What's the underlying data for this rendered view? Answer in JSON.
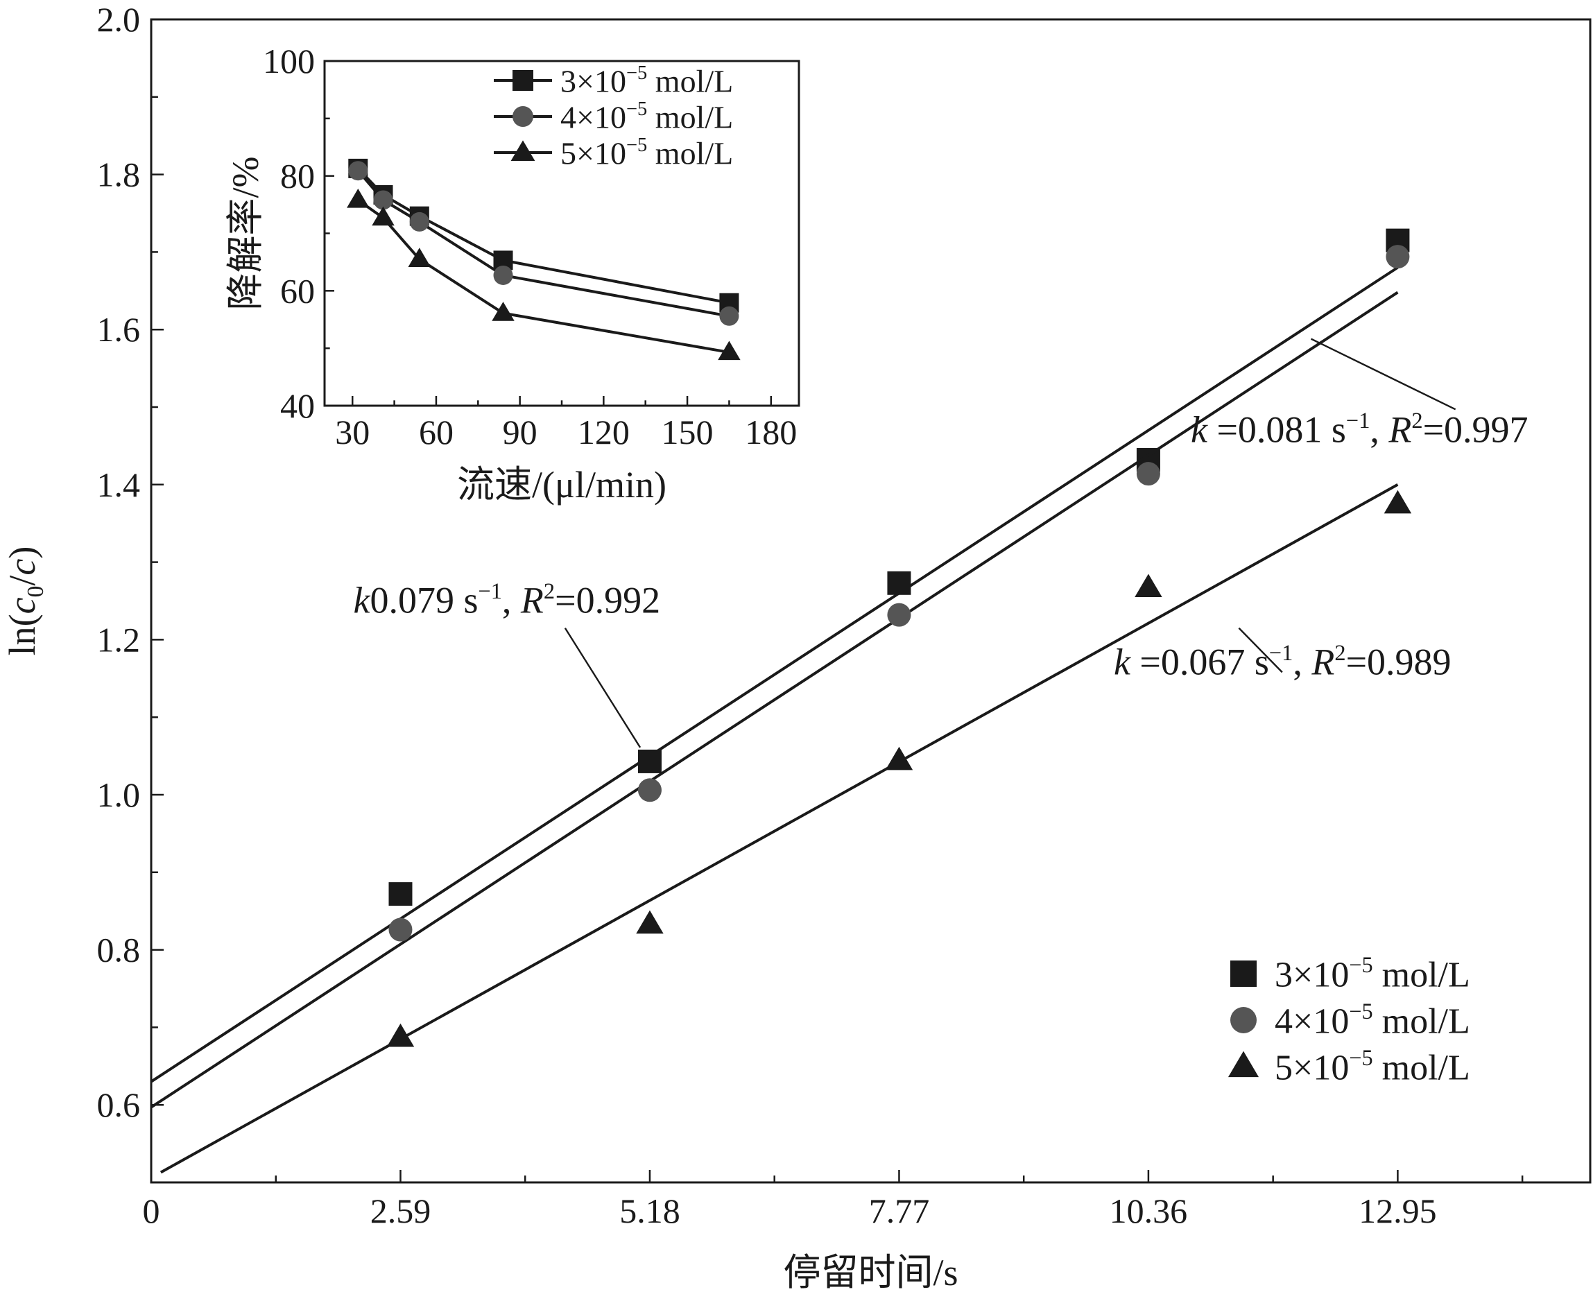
{
  "chart_data": [
    {
      "type": "scatter",
      "xlabel": "停留时间/s",
      "ylabel": "ln(c0/c)",
      "ylabel_parts": {
        "prefix": "ln(",
        "c": "c",
        "sub": "0",
        "slash": "/",
        "c2": "c",
        "suffix": ")"
      },
      "xlim": [
        0,
        14.95
      ],
      "ylim": [
        0.5,
        2.0
      ],
      "x_ticks": [
        0,
        2.59,
        5.18,
        7.77,
        10.36,
        12.95
      ],
      "x_tick_labels": [
        "0",
        "2.59",
        "5.18",
        "7.77",
        "10.36",
        "12.95"
      ],
      "y_ticks": [
        0.6,
        0.8,
        1.0,
        1.2,
        1.4,
        1.6,
        1.8,
        2.0
      ],
      "y_tick_labels": [
        "0.6",
        "0.8",
        "1.0",
        "1.2",
        "1.4",
        "1.6",
        "1.8",
        "2.0"
      ],
      "legend_position": "bottom-right",
      "series": [
        {
          "name": "3×10⁻⁵ mol/L",
          "name_parts": {
            "coef": "3×10",
            "exp": "−5",
            "unit": " mol/L"
          },
          "marker": "square",
          "color": "#1a1a1a",
          "x": [
            2.59,
            5.18,
            7.77,
            10.36,
            12.95
          ],
          "y": [
            0.872,
            1.043,
            1.273,
            1.432,
            1.715
          ],
          "fit": {
            "x": [
              0,
              12.95
            ],
            "y": [
              0.63,
              1.68
            ]
          }
        },
        {
          "name": "4×10⁻⁵ mol/L",
          "name_parts": {
            "coef": "4×10",
            "exp": "−5",
            "unit": " mol/L"
          },
          "marker": "circle",
          "color": "#555555",
          "x": [
            2.59,
            5.18,
            7.77,
            10.36,
            12.95
          ],
          "y": [
            0.826,
            1.006,
            1.232,
            1.414,
            1.694
          ],
          "fit": {
            "x": [
              0,
              12.95
            ],
            "y": [
              0.597,
              1.648
            ]
          }
        },
        {
          "name": "5×10⁻⁵ mol/L",
          "name_parts": {
            "coef": "5×10",
            "exp": "−5",
            "unit": " mol/L"
          },
          "marker": "triangle",
          "color": "#1a1a1a",
          "x": [
            2.59,
            5.18,
            7.77,
            10.36,
            12.95
          ],
          "y": [
            0.687,
            0.833,
            1.044,
            1.267,
            1.375
          ],
          "fit": {
            "x": [
              0.1,
              12.95
            ],
            "y": [
              0.513,
              1.4
            ]
          }
        }
      ],
      "annotations": [
        {
          "k": "k",
          "kval": "0.079 s",
          "kexp": "−1",
          "rsym": "R",
          "rexp": "2",
          "rval": "=0.992",
          "text_at": [
            2.1,
            1.235
          ],
          "line_from": [
            4.3,
            1.215
          ],
          "line_to": [
            5.08,
            1.061
          ]
        },
        {
          "k": "k",
          "kval": " =0.081 s",
          "kexp": "−1",
          "rsym": "R",
          "rexp": "2",
          "rval": "=0.997",
          "text_at": [
            10.8,
            1.455
          ],
          "line_from": [
            13.55,
            1.497
          ],
          "line_to": [
            12.05,
            1.588
          ]
        },
        {
          "k": "k",
          "kval": " =0.067 s",
          "kexp": "−1",
          "rsym": "R",
          "rexp": "2",
          "rval": "=0.989",
          "text_at": [
            10.0,
            1.155
          ],
          "line_from": [
            11.75,
            1.158
          ],
          "line_to": [
            11.3,
            1.215
          ]
        }
      ]
    },
    {
      "type": "line",
      "xlabel": "流速/(μl/min)",
      "ylabel": "降解率/%",
      "xlim": [
        20,
        190
      ],
      "ylim": [
        40,
        100
      ],
      "x_ticks": [
        30,
        60,
        90,
        120,
        150,
        180
      ],
      "x_tick_labels": [
        "30",
        "60",
        "90",
        "120",
        "150",
        "180"
      ],
      "y_ticks": [
        40,
        60,
        80,
        100
      ],
      "y_tick_labels": [
        "40",
        "60",
        "80",
        "100"
      ],
      "legend_position": "top-right",
      "series": [
        {
          "name": "3×10⁻⁵ mol/L",
          "name_parts": {
            "coef": "3×10",
            "exp": "−5",
            "unit": " mol/L"
          },
          "marker": "square",
          "color": "#1a1a1a",
          "x": [
            32,
            41,
            54,
            84,
            165
          ],
          "y": [
            81.3,
            76.7,
            73.0,
            65.3,
            57.9
          ]
        },
        {
          "name": "4×10⁻⁵ mol/L",
          "name_parts": {
            "coef": "4×10",
            "exp": "−5",
            "unit": " mol/L"
          },
          "marker": "circle",
          "color": "#555555",
          "x": [
            32,
            41,
            54,
            84,
            165
          ],
          "y": [
            80.9,
            75.8,
            72.0,
            62.7,
            55.6
          ]
        },
        {
          "name": "5×10⁻⁵ mol/L",
          "name_parts": {
            "coef": "5×10",
            "exp": "−5",
            "unit": " mol/L"
          },
          "marker": "triangle",
          "color": "#1a1a1a",
          "x": [
            32,
            41,
            54,
            84,
            165
          ],
          "y": [
            75.8,
            72.7,
            65.5,
            56.1,
            49.3
          ]
        }
      ]
    }
  ]
}
